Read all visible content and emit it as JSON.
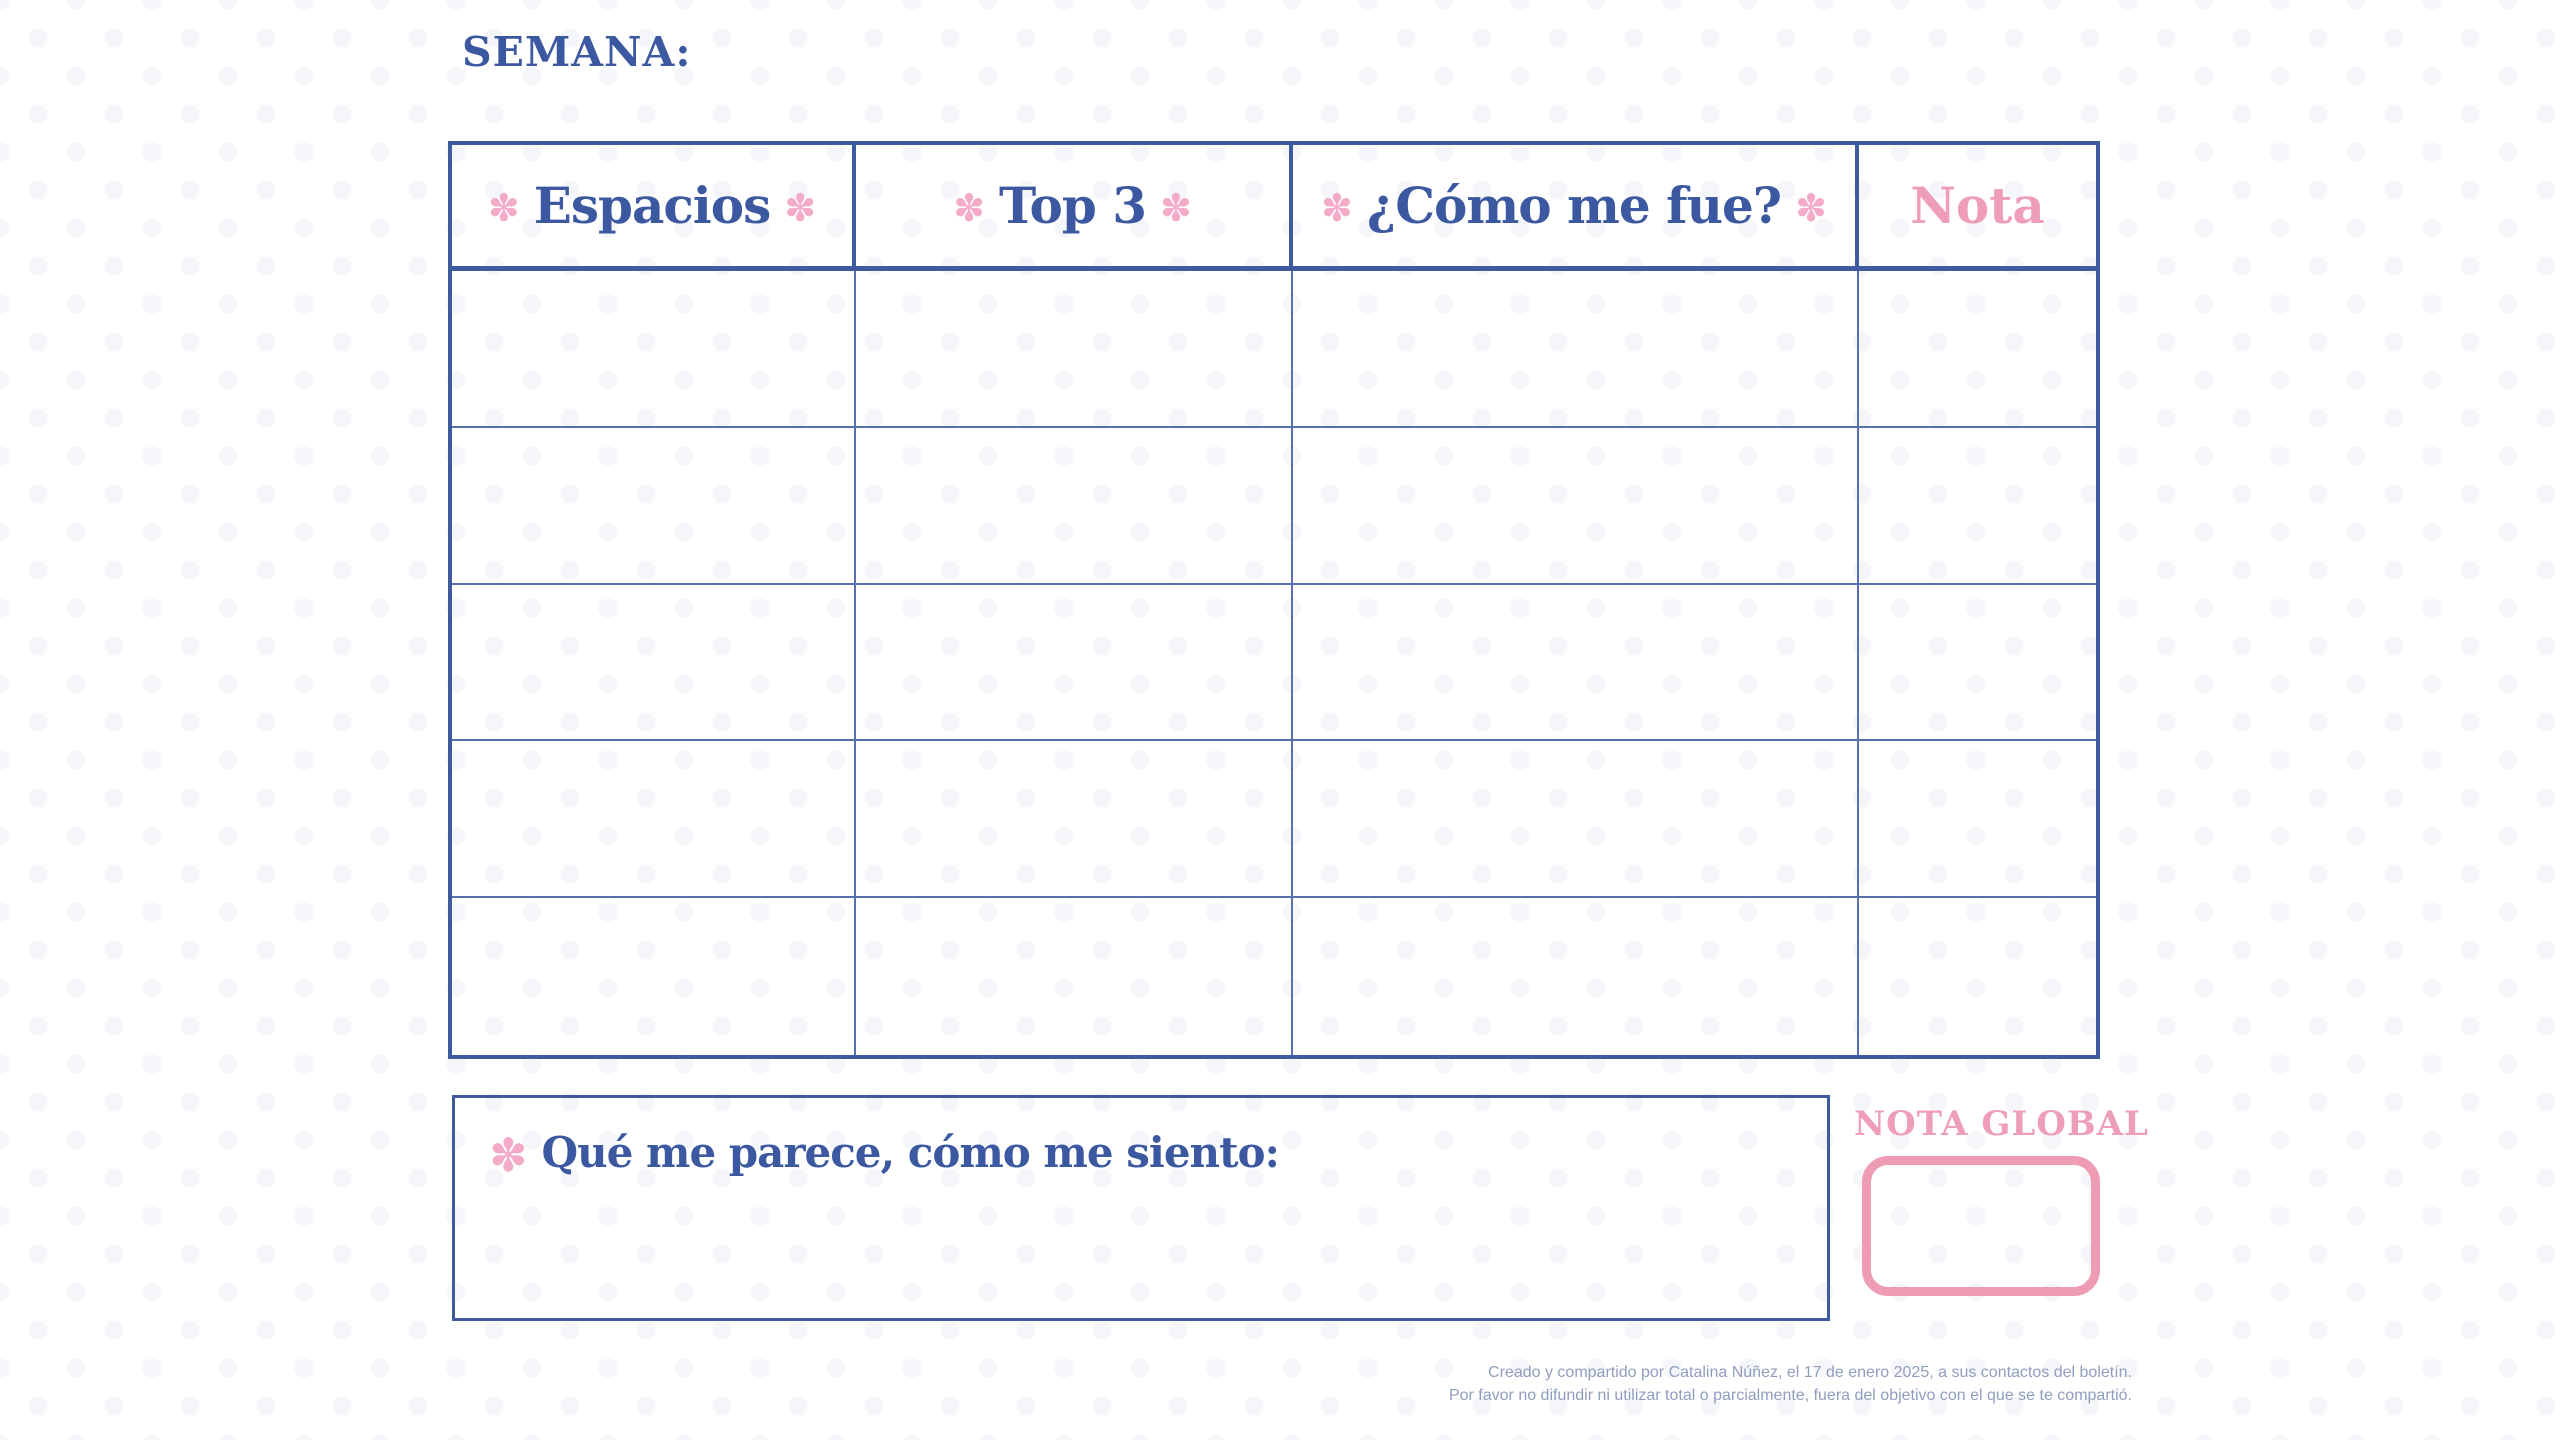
{
  "page": {
    "title": "SEMANA:"
  },
  "icons": {
    "flower": "✽"
  },
  "colors": {
    "navy": "#3b58a0",
    "grid_line": "#5670ab",
    "pink_flower": "#f3abc7",
    "pink_text": "#ee9dba",
    "pink_box_border": "#ee9bb4",
    "footer_text": "#8f9dbe"
  },
  "table": {
    "row_count": 5,
    "columns": [
      {
        "label": "Espacios",
        "flowers": "both",
        "text_color": "navy"
      },
      {
        "label": "Top 3",
        "flowers": "both",
        "text_color": "navy"
      },
      {
        "label": "¿Cómo me fue?",
        "flowers": "both",
        "text_color": "navy"
      },
      {
        "label": "Nota",
        "flowers": "none",
        "text_color": "pink"
      }
    ]
  },
  "reflection": {
    "label": "Qué me parece, cómo me siento:"
  },
  "nota_global": {
    "label": "NOTA GLOBAL"
  },
  "footer": {
    "line1": "Creado y compartido por Catalina Núñez,  el 17 de enero 2025, a sus contactos del boletín.",
    "line2": "Por favor no difundir ni utilizar total o parcialmente, fuera del objetivo con el que se te compartió."
  }
}
